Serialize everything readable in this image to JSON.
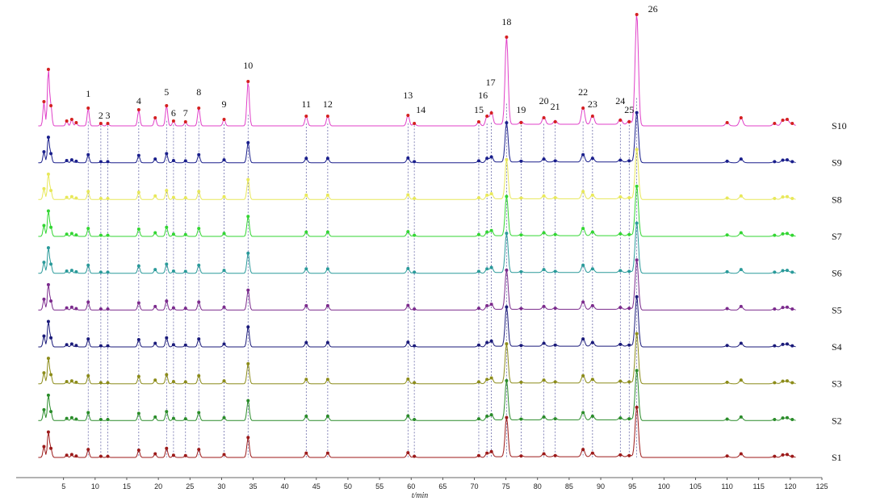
{
  "chart_data": {
    "type": "line",
    "title": "",
    "xlabel": "t/min",
    "ylabel": "",
    "xlim": [
      -2.5,
      125
    ],
    "x_ticks": [
      5,
      10,
      15,
      20,
      25,
      30,
      35,
      40,
      45,
      50,
      55,
      60,
      65,
      70,
      75,
      80,
      85,
      90,
      95,
      100,
      105,
      110,
      115,
      120,
      125
    ],
    "grid": false,
    "legend": "none",
    "peaks": [
      {
        "label": "1",
        "rt": 8.9,
        "height": 22
      },
      {
        "label": "2",
        "rt": 10.9,
        "height": 3
      },
      {
        "label": "3",
        "rt": 12.0,
        "height": 3
      },
      {
        "label": "4",
        "rt": 16.9,
        "height": 20
      },
      {
        "label": "5",
        "rt": 21.3,
        "height": 25
      },
      {
        "label": "6",
        "rt": 22.4,
        "height": 6
      },
      {
        "label": "7",
        "rt": 24.3,
        "height": 5
      },
      {
        "label": "8",
        "rt": 26.4,
        "height": 22
      },
      {
        "label": "9",
        "rt": 30.4,
        "height": 8
      },
      {
        "label": "10",
        "rt": 34.2,
        "height": 55
      },
      {
        "label": "11",
        "rt": 43.4,
        "height": 12
      },
      {
        "label": "12",
        "rt": 46.8,
        "height": 12
      },
      {
        "label": "13",
        "rt": 59.5,
        "height": 13
      },
      {
        "label": "14",
        "rt": 60.5,
        "height": 3
      },
      {
        "label": "15",
        "rt": 70.7,
        "height": 5
      },
      {
        "label": "16",
        "rt": 72.0,
        "height": 12
      },
      {
        "label": "17",
        "rt": 72.7,
        "height": 16
      },
      {
        "label": "18",
        "rt": 75.1,
        "height": 110
      },
      {
        "label": "19",
        "rt": 77.4,
        "height": 4
      },
      {
        "label": "20",
        "rt": 81.0,
        "height": 10
      },
      {
        "label": "21",
        "rt": 82.8,
        "height": 5
      },
      {
        "label": "22",
        "rt": 87.2,
        "height": 22
      },
      {
        "label": "23",
        "rt": 88.7,
        "height": 12
      },
      {
        "label": "24",
        "rt": 93.1,
        "height": 7
      },
      {
        "label": "25",
        "rt": 94.5,
        "height": 5
      },
      {
        "label": "26",
        "rt": 95.7,
        "height": 138
      }
    ],
    "extra_peaks": [
      {
        "rt": 1.9,
        "height": 30
      },
      {
        "rt": 2.6,
        "height": 70
      },
      {
        "rt": 3.0,
        "height": 25
      },
      {
        "rt": 5.5,
        "height": 6
      },
      {
        "rt": 6.3,
        "height": 8
      },
      {
        "rt": 7.0,
        "height": 4
      },
      {
        "rt": 19.5,
        "height": 10
      },
      {
        "rt": 110.0,
        "height": 4
      },
      {
        "rt": 112.2,
        "height": 10
      },
      {
        "rt": 117.5,
        "height": 3
      },
      {
        "rt": 118.8,
        "height": 7
      },
      {
        "rt": 119.5,
        "height": 8
      },
      {
        "rt": 120.3,
        "height": 3
      }
    ],
    "series": [
      {
        "name": "S10",
        "color": "#e040c8"
      },
      {
        "name": "S9",
        "color": "#1a1f8c"
      },
      {
        "name": "S8",
        "color": "#e8e85a"
      },
      {
        "name": "S7",
        "color": "#33d633"
      },
      {
        "name": "S6",
        "color": "#2a9a9a"
      },
      {
        "name": "S5",
        "color": "#7b2a8c"
      },
      {
        "name": "S4",
        "color": "#1a1a7a"
      },
      {
        "name": "S3",
        "color": "#8c8c1a"
      },
      {
        "name": "S2",
        "color": "#2a8c2a"
      },
      {
        "name": "S1",
        "color": "#9c1a1a"
      }
    ]
  }
}
